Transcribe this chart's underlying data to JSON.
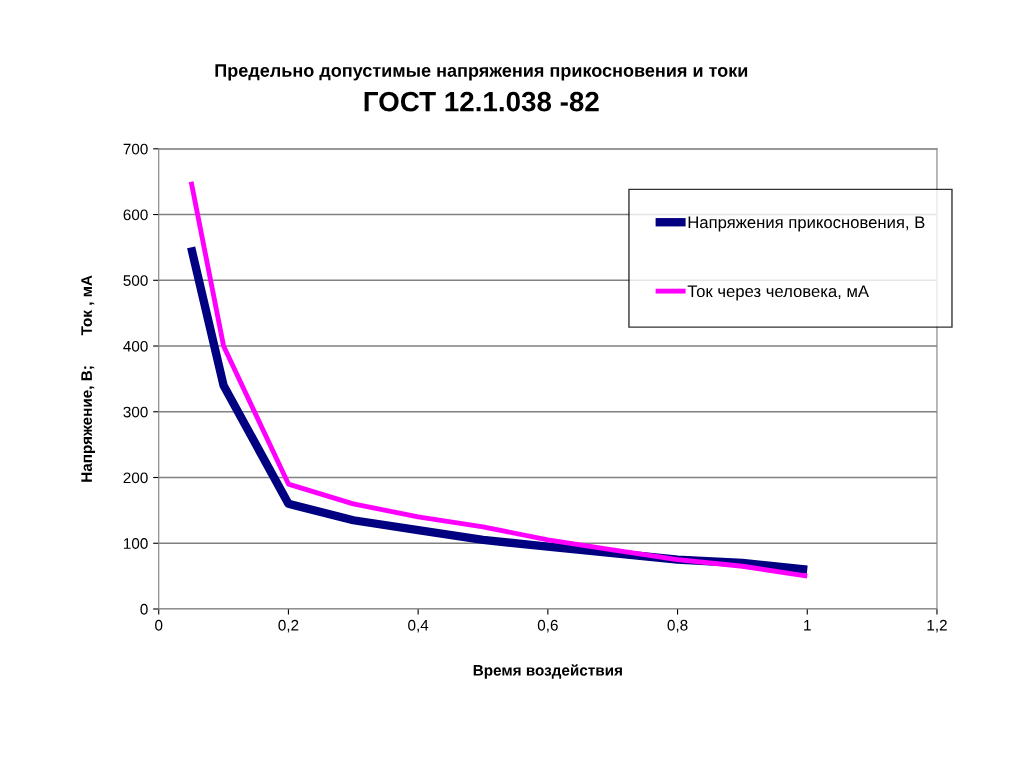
{
  "chart_data": {
    "type": "line",
    "title": "Предельно допустимые напряжения прикосновения и токи",
    "subtitle": "ГОСТ 12.1.038 -82",
    "xlabel": "Время воздействия",
    "ylabel": "Напряжение, В;       Ток , мА",
    "x": [
      0.05,
      0.1,
      0.2,
      0.3,
      0.4,
      0.5,
      0.6,
      0.7,
      0.8,
      0.9,
      1.0
    ],
    "series": [
      {
        "name": "Напряжения прикосновения, В",
        "color": "#000080",
        "values": [
          550,
          340,
          160,
          135,
          120,
          105,
          95,
          85,
          75,
          70,
          60
        ]
      },
      {
        "name": "Ток через человека, мА",
        "color": "#ff00ff",
        "values": [
          650,
          400,
          190,
          160,
          140,
          125,
          105,
          90,
          75,
          65,
          50
        ]
      }
    ],
    "xlim": [
      0,
      1.2
    ],
    "ylim": [
      0,
      700
    ],
    "xticks": [
      0,
      {
        "value": 0.2,
        "label": "0,2"
      },
      {
        "value": 0.4,
        "label": "0,4"
      },
      {
        "value": 0.6,
        "label": "0,6"
      },
      {
        "value": 0.8,
        "label": "0,8"
      },
      1,
      {
        "value": 1.2,
        "label": "1,2"
      }
    ],
    "yticks": [
      0,
      100,
      200,
      300,
      400,
      500,
      600,
      700
    ],
    "grid": "y",
    "legend": "top right",
    "marker": "none",
    "line_style": "solid"
  }
}
